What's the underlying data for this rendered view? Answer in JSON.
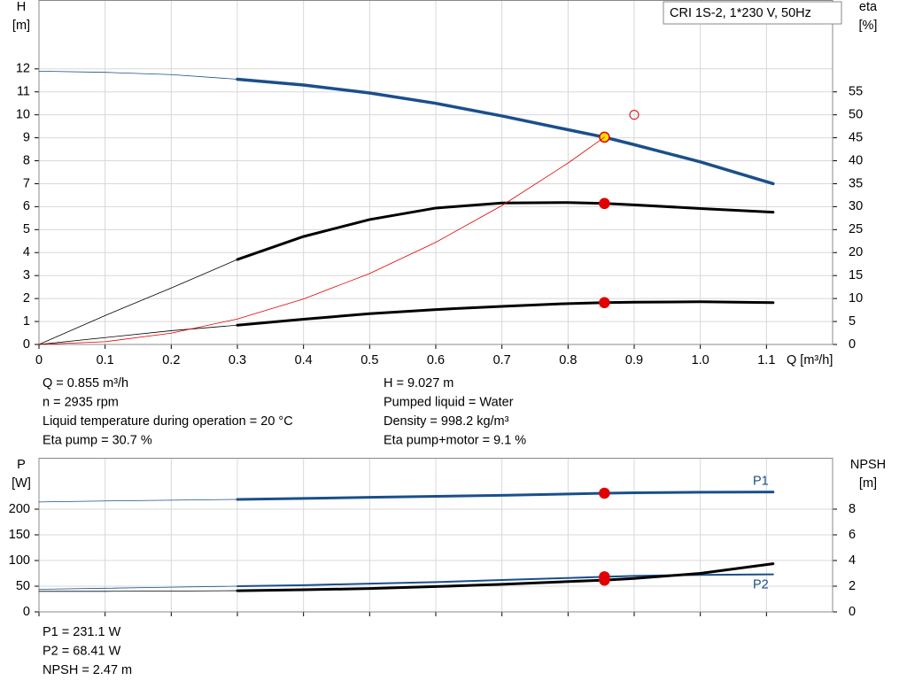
{
  "legend_box": "CRI 1S-2, 1*230 V, 50Hz",
  "chart_data": [
    {
      "type": "line",
      "y_label": "H",
      "y_unit": "[m]",
      "y2_label": "eta",
      "y2_unit": "[%]",
      "x_label": "Q [m³/h]",
      "x": [
        0,
        0.1,
        0.2,
        0.3,
        0.4,
        0.5,
        0.6,
        0.7,
        0.8,
        0.855,
        0.9,
        1.0,
        1.11
      ],
      "xlim": [
        0,
        1.2
      ],
      "xticks": [
        0,
        0.1,
        0.2,
        0.3,
        0.4,
        0.5,
        0.6,
        0.7,
        0.8,
        0.9,
        {
          "value": 1,
          "label": "1.0"
        },
        1.1
      ],
      "show_xtick_labels": true,
      "ylim": [
        0,
        15
      ],
      "yticks": [
        0,
        1,
        2,
        3,
        4,
        5,
        6,
        7,
        8,
        9,
        10,
        11,
        12
      ],
      "y2lim": [
        0,
        75
      ],
      "y2ticks": [
        0,
        5,
        10,
        15,
        20,
        25,
        30,
        35,
        40,
        45,
        50,
        55
      ],
      "grid": true,
      "duty_range": [
        0.3,
        1.11
      ],
      "operating_q": 0.855,
      "reference_point": {
        "x": 0.9,
        "y": 10,
        "color": "#e00000"
      },
      "series": [
        {
          "color": "#1a4f8b",
          "width": 3.5,
          "marker_color": "#ffe000",
          "values": [
            11.9,
            11.85,
            11.75,
            11.55,
            11.3,
            10.95,
            10.5,
            9.95,
            9.35,
            9.027,
            8.7,
            7.95,
            7.0
          ]
        },
        {
          "color": "#000000",
          "width": 3,
          "marker_color": "#e00000",
          "axis": "y2",
          "values": [
            0,
            6.3,
            12.3,
            18.5,
            23.5,
            27.2,
            29.7,
            30.8,
            30.9,
            30.7,
            30.4,
            29.6,
            28.8
          ]
        },
        {
          "color": "#000000",
          "width": 3,
          "marker_color": "#e00000",
          "axis": "y2",
          "values": [
            0,
            1.5,
            3,
            4.2,
            5.5,
            6.7,
            7.6,
            8.3,
            8.9,
            9.1,
            9.2,
            9.3,
            9.1
          ]
        },
        {
          "color": "#e00000",
          "width": 0.8,
          "thin": true,
          "values": [
            0,
            0.12,
            0.49,
            1.11,
            1.98,
            3.09,
            4.45,
            6.05,
            7.9,
            9.027,
            null,
            null,
            null
          ]
        }
      ]
    },
    {
      "type": "line",
      "y_label": "P",
      "y_unit": "[W]",
      "y2_label": "NPSH",
      "y2_unit": "[m]",
      "x": [
        0,
        0.1,
        0.2,
        0.3,
        0.4,
        0.5,
        0.6,
        0.7,
        0.8,
        0.855,
        0.9,
        1.0,
        1.11
      ],
      "xlim": [
        0,
        1.2
      ],
      "xticks": [
        0,
        0.1,
        0.2,
        0.3,
        0.4,
        0.5,
        0.6,
        0.7,
        0.8,
        0.9,
        1,
        1.1
      ],
      "show_xtick_labels": false,
      "ylim": [
        0,
        300
      ],
      "yticks": [
        0,
        50,
        100,
        150,
        200
      ],
      "y2lim": [
        0,
        12
      ],
      "y2ticks": [
        0,
        2,
        4,
        6,
        8
      ],
      "grid": true,
      "duty_range": [
        0.3,
        1.11
      ],
      "operating_q": 0.855,
      "series": [
        {
          "name": "P1",
          "color": "#1a4f8b",
          "width": 3,
          "marker_color": "#e00000",
          "values": [
            214,
            216,
            217.5,
            219,
            221,
            223,
            225,
            227,
            229.5,
            231.1,
            232,
            233,
            233.5
          ]
        },
        {
          "name": "P2",
          "color": "#1a4f8b",
          "width": 2,
          "marker_color": "#e00000",
          "values": [
            44,
            46,
            48,
            50,
            52,
            55,
            58,
            62,
            66,
            68.41,
            70,
            72,
            73
          ]
        },
        {
          "color": "#000000",
          "width": 3,
          "marker_color": "#e00000",
          "axis": "y2",
          "values": [
            1.6,
            1.6,
            1.62,
            1.65,
            1.72,
            1.82,
            1.97,
            2.15,
            2.36,
            2.47,
            2.6,
            3.0,
            3.75
          ]
        }
      ]
    }
  ],
  "info_top_left": [
    "Q = 0.855 m³/h",
    "n = 2935 rpm",
    "Liquid temperature during operation = 20 °C",
    "Eta pump = 30.7 %"
  ],
  "info_top_right": [
    "H = 9.027 m",
    "Pumped liquid = Water",
    "Density = 998.2 kg/m³",
    "Eta pump+motor = 9.1 %"
  ],
  "info_bottom": [
    "P1 = 231.1 W",
    "P2 = 68.41 W",
    "NPSH = 2.47 m"
  ]
}
